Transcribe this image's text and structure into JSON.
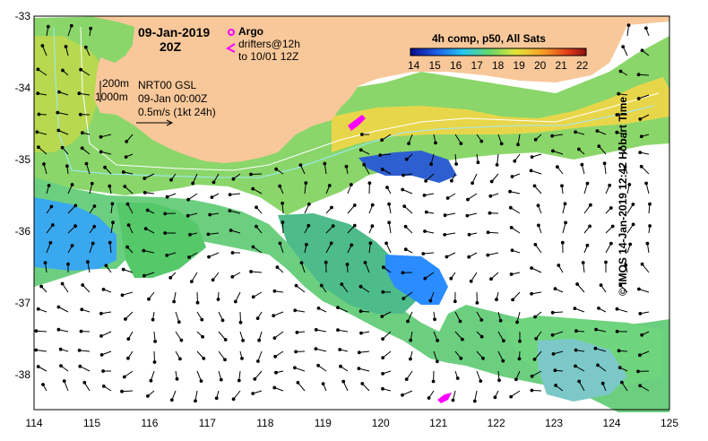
{
  "map": {
    "date_label": "09-Jan-2019",
    "time_label": "20Z",
    "colorbar_title": "4h comp, p50, All Sats",
    "colorbar_ticks": [
      "14",
      "15",
      "16",
      "17",
      "18",
      "19",
      "20",
      "21",
      "22"
    ],
    "legend": {
      "argo": "Argo",
      "drifters_line1": "drifters@12h",
      "drifters_line2": "to 10/01 12Z"
    },
    "contours": {
      "depth1": "200m",
      "depth2": "1000m"
    },
    "info": {
      "line1": "NRT00 GSL",
      "line2": "09-Jan 00:00Z",
      "line3": "0.5m/s (1kt 24h)"
    },
    "credit": "© IMOS 14-Jan-2019 12:42 Hobart Time",
    "y_ticks": [
      "-33",
      "-34",
      "-35",
      "-36",
      "-37",
      "-38"
    ],
    "x_ticks": [
      "114",
      "115",
      "116",
      "117",
      "118",
      "119",
      "120",
      "121",
      "122",
      "123",
      "124",
      "125"
    ],
    "colors": {
      "land": "#f8c89a",
      "cool": "#2a8cff",
      "mid": "#74d36a",
      "warm": "#f8a028",
      "argo": "#ff00ff"
    }
  }
}
